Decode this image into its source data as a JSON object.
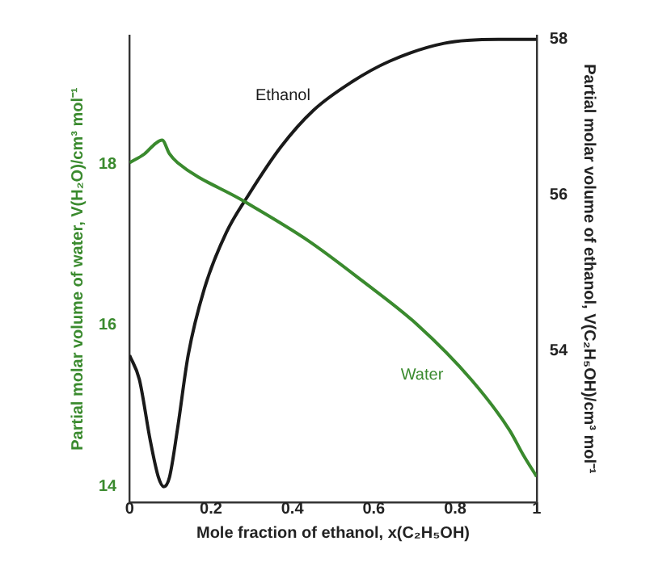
{
  "chart_data": {
    "type": "line",
    "xlabel": "Mole fraction of ethanol, x(C₂H₅OH)",
    "ylabel": "Partial molar volume of water, V(H₂O)/cm³ mol⁻¹",
    "y2label": "Partial molar volume of ethanol, V(C₂H₅OH)/cm³ mol⁻¹",
    "xlim": [
      0,
      1
    ],
    "xticks": [
      0,
      0.2,
      0.4,
      0.6,
      0.8,
      1
    ],
    "ylim": [
      13.8,
      19.6
    ],
    "yticks": [
      14,
      16,
      18
    ],
    "y2lim": [
      52.05,
      58.05
    ],
    "y2ticks": [
      54,
      56,
      58
    ],
    "grid": false,
    "legend": false,
    "marker": "none",
    "line_style": "solid",
    "series": [
      {
        "name": "Water",
        "color": "#3a8a2e",
        "x": [
          0,
          0.037,
          0.064,
          0.08,
          0.098,
          0.118,
          0.278,
          0.439,
          0.572,
          0.706,
          0.84,
          0.933,
          0.967,
          1
        ],
        "values": [
          18.02,
          18.13,
          18.26,
          18.3,
          18.13,
          18.02,
          17.55,
          17.05,
          16.55,
          16.01,
          15.32,
          14.7,
          14.39,
          14.12
        ]
      },
      {
        "name": "Ethanol",
        "color": "#1a1a1a",
        "axis": "y2",
        "x": [
          0,
          0.024,
          0.051,
          0.071,
          0.084,
          0.098,
          0.118,
          0.144,
          0.184,
          0.238,
          0.291,
          0.372,
          0.452,
          0.545,
          0.639,
          0.773,
          0.906,
          1
        ],
        "values": [
          53.94,
          53.63,
          52.84,
          52.37,
          52.25,
          52.37,
          53.0,
          53.94,
          54.8,
          55.52,
          55.99,
          56.62,
          57.09,
          57.45,
          57.72,
          57.95,
          58.0,
          58.0
        ]
      }
    ]
  }
}
